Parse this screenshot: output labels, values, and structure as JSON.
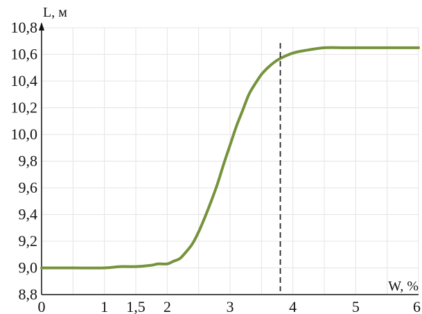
{
  "chart_data": {
    "type": "line",
    "title": "",
    "xlabel": "W, %",
    "ylabel": "L, м",
    "xlim": [
      0,
      6
    ],
    "ylim": [
      8.8,
      10.8
    ],
    "grid": true,
    "x_ticks": [
      {
        "value": 0,
        "label": "0"
      },
      {
        "value": 1,
        "label": "1"
      },
      {
        "value": 1.5,
        "label": "1,5"
      },
      {
        "value": 2,
        "label": "2"
      },
      {
        "value": 3,
        "label": "3"
      },
      {
        "value": 4,
        "label": "4"
      },
      {
        "value": 5,
        "label": "5"
      },
      {
        "value": 6,
        "label": "6"
      }
    ],
    "y_ticks": [
      {
        "value": 8.8,
        "label": "8,8"
      },
      {
        "value": 9.0,
        "label": "9,0"
      },
      {
        "value": 9.2,
        "label": "9,2"
      },
      {
        "value": 9.4,
        "label": "9,4"
      },
      {
        "value": 9.6,
        "label": "9,6"
      },
      {
        "value": 9.8,
        "label": "9,8"
      },
      {
        "value": 10.0,
        "label": "10,0"
      },
      {
        "value": 10.2,
        "label": "10,2"
      },
      {
        "value": 10.4,
        "label": "10,4"
      },
      {
        "value": 10.6,
        "label": "10,6"
      },
      {
        "value": 10.8,
        "label": "10,8"
      }
    ],
    "series": [
      {
        "color": "#76933c",
        "x": [
          0,
          0.5,
          1.0,
          1.25,
          1.5,
          1.75,
          1.85,
          2.0,
          2.1,
          2.2,
          2.3,
          2.4,
          2.5,
          2.6,
          2.7,
          2.8,
          2.9,
          3.0,
          3.1,
          3.2,
          3.3,
          3.4,
          3.5,
          3.6,
          3.7,
          3.8,
          4.0,
          4.2,
          4.5,
          4.8,
          5.0,
          5.3,
          5.6,
          6.0
        ],
        "y": [
          9.0,
          9.0,
          9.0,
          9.01,
          9.01,
          9.02,
          9.03,
          9.03,
          9.05,
          9.07,
          9.12,
          9.18,
          9.27,
          9.38,
          9.5,
          9.63,
          9.78,
          9.92,
          10.06,
          10.18,
          10.3,
          10.38,
          10.45,
          10.5,
          10.54,
          10.57,
          10.61,
          10.63,
          10.65,
          10.65,
          10.65,
          10.65,
          10.65,
          10.65
        ]
      }
    ],
    "reference_line": {
      "x": 3.8,
      "style": "dashed",
      "color": "#222222"
    }
  }
}
